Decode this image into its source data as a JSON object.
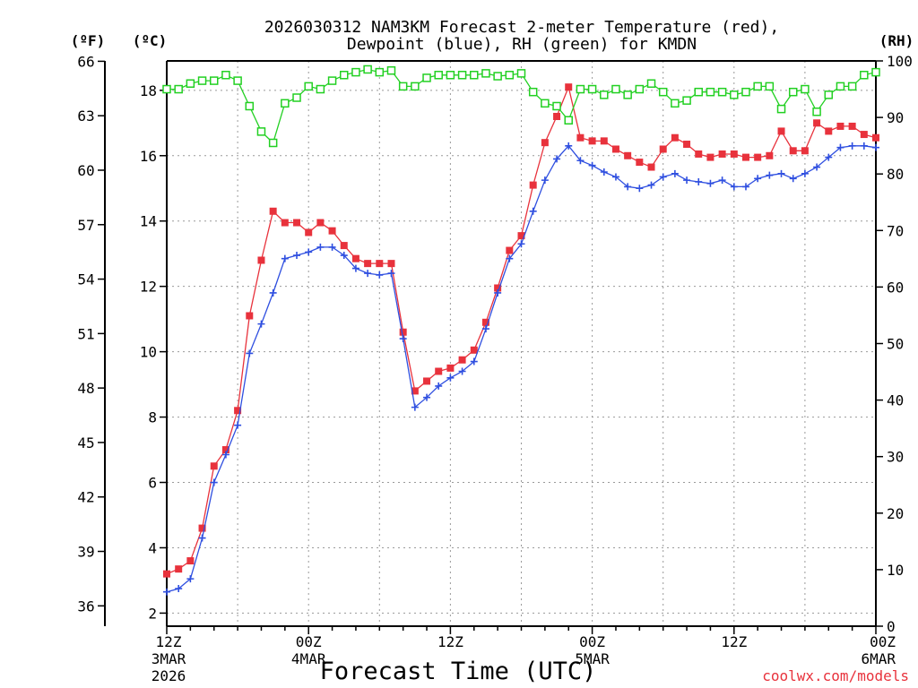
{
  "chart_data": {
    "type": "line",
    "title_line1": "2026030312 NAM3KM Forecast 2-meter Temperature (red),",
    "title_line2": "Dewpoint (blue), RH (green) for KMDN",
    "xlabel": "Forecast Time (UTC)",
    "credit": "coolwx.com/models",
    "left_outer_unit": "(ºF)",
    "left_inner_unit": "(ºC)",
    "right_unit": "(RH)",
    "xlim": [
      0,
      60
    ],
    "ylim_c": [
      1.6,
      18.9
    ],
    "ylim_rh": [
      0,
      100
    ],
    "f_ticks": [
      36,
      39,
      42,
      45,
      48,
      51,
      54,
      57,
      60,
      63,
      66
    ],
    "c_ticks": [
      2,
      4,
      6,
      8,
      10,
      12,
      14,
      16,
      18
    ],
    "rh_ticks": [
      0,
      10,
      20,
      30,
      40,
      50,
      60,
      70,
      80,
      90,
      100
    ],
    "x_ticks": [
      {
        "hour": 0,
        "l1": "12Z",
        "l2": "3MAR",
        "l3": "2026"
      },
      {
        "hour": 12,
        "l1": "00Z",
        "l2": "4MAR",
        "l3": ""
      },
      {
        "hour": 24,
        "l1": "12Z",
        "l2": "",
        "l3": ""
      },
      {
        "hour": 36,
        "l1": "00Z",
        "l2": "5MAR",
        "l3": ""
      },
      {
        "hour": 48,
        "l1": "12Z",
        "l2": "",
        "l3": ""
      },
      {
        "hour": 60,
        "l1": "00Z",
        "l2": "6MAR",
        "l3": ""
      }
    ],
    "x": [
      0,
      1,
      2,
      3,
      4,
      5,
      6,
      7,
      8,
      9,
      10,
      11,
      12,
      13,
      14,
      15,
      16,
      17,
      18,
      19,
      20,
      21,
      22,
      23,
      24,
      25,
      26,
      27,
      28,
      29,
      30,
      31,
      32,
      33,
      34,
      35,
      36,
      37,
      38,
      39,
      40,
      41,
      42,
      43,
      44,
      45,
      46,
      47,
      48,
      49,
      50,
      51,
      52,
      53,
      54,
      55,
      56,
      57,
      58,
      59,
      60
    ],
    "series": [
      {
        "name": "Temperature",
        "unit": "C",
        "color": "#e8323c",
        "marker": "filled-square",
        "values": [
          3.2,
          3.35,
          3.6,
          4.6,
          6.5,
          7.0,
          8.2,
          11.1,
          12.8,
          14.3,
          13.95,
          13.95,
          13.65,
          13.95,
          13.7,
          13.25,
          12.85,
          12.7,
          12.7,
          12.7,
          10.6,
          8.8,
          9.1,
          9.4,
          9.5,
          9.75,
          10.05,
          10.9,
          11.95,
          13.1,
          13.55,
          15.1,
          16.4,
          17.2,
          18.1,
          16.55,
          16.45,
          16.45,
          16.2,
          16.0,
          15.8,
          15.65,
          16.2,
          16.55,
          16.35,
          16.05,
          15.95,
          16.05,
          16.05,
          15.95,
          15.95,
          16.0,
          16.75,
          16.15,
          16.15,
          17.0,
          16.75,
          16.9,
          16.9,
          16.65,
          16.55
        ]
      },
      {
        "name": "Dewpoint",
        "unit": "C",
        "color": "#2f4fe0",
        "marker": "plus",
        "values": [
          2.65,
          2.75,
          3.05,
          4.3,
          6.0,
          6.85,
          7.75,
          9.95,
          10.85,
          11.8,
          12.85,
          12.95,
          13.05,
          13.2,
          13.2,
          12.95,
          12.55,
          12.4,
          12.35,
          12.4,
          10.4,
          8.3,
          8.6,
          8.95,
          9.2,
          9.4,
          9.7,
          10.7,
          11.8,
          12.85,
          13.3,
          14.3,
          15.25,
          15.9,
          16.3,
          15.85,
          15.7,
          15.5,
          15.35,
          15.05,
          15.0,
          15.1,
          15.35,
          15.45,
          15.25,
          15.2,
          15.15,
          15.25,
          15.05,
          15.05,
          15.3,
          15.4,
          15.45,
          15.3,
          15.45,
          15.65,
          15.95,
          16.25,
          16.3,
          16.3,
          16.25
        ]
      },
      {
        "name": "RH",
        "unit": "%",
        "color": "#22d022",
        "marker": "open-square",
        "values": [
          95,
          95,
          96,
          96.5,
          96.5,
          97.5,
          96.5,
          92,
          87.5,
          85.5,
          92.5,
          93.5,
          95.5,
          95,
          96.5,
          97.5,
          98,
          98.5,
          98,
          98.3,
          95.5,
          95.5,
          97,
          97.5,
          97.5,
          97.5,
          97.5,
          97.8,
          97.3,
          97.5,
          97.8,
          94.5,
          92.5,
          92,
          89.5,
          95,
          95,
          94,
          95,
          94,
          95,
          96,
          94.5,
          92.5,
          93,
          94.5,
          94.5,
          94.5,
          94,
          94.5,
          95.5,
          95.5,
          91.5,
          94.5,
          95,
          91,
          94,
          95.5,
          95.5,
          97.5,
          98
        ]
      }
    ]
  }
}
